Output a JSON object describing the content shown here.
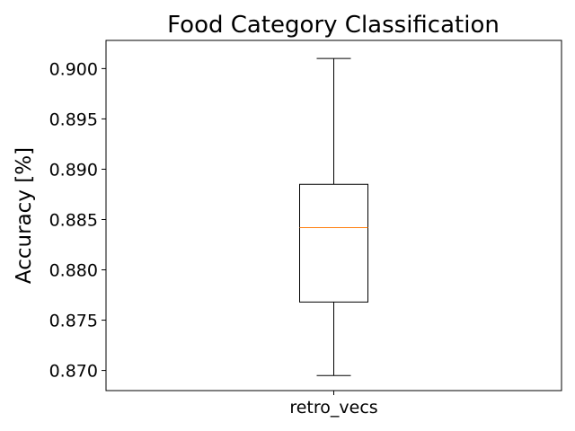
{
  "chart_data": {
    "type": "box",
    "title": "Food Category Classification",
    "xlabel": "",
    "ylabel": "Accuracy [%]",
    "categories": [
      "retro_vecs"
    ],
    "boxes": [
      {
        "category": "retro_vecs",
        "whisker_low": 0.8695,
        "q1": 0.8768,
        "median": 0.8842,
        "q3": 0.8885,
        "whisker_high": 0.901
      }
    ],
    "ylim": [
      0.868,
      0.9028
    ],
    "yticks": [
      0.87,
      0.875,
      0.88,
      0.885,
      0.89,
      0.895,
      0.9
    ],
    "ytick_labels": [
      "0.870",
      "0.875",
      "0.880",
      "0.885",
      "0.890",
      "0.895",
      "0.900"
    ],
    "grid": false,
    "colors": {
      "box": "#000000",
      "median": "#ff7f0e"
    }
  }
}
